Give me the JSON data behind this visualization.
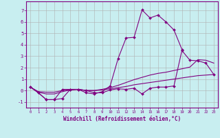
{
  "xlabel": "Windchill (Refroidissement éolien,°C)",
  "background_color": "#c8eef0",
  "line_color": "#800080",
  "grid_color": "#b0b0b0",
  "xlim": [
    -0.5,
    23.5
  ],
  "ylim": [
    -1.5,
    7.8
  ],
  "xticks": [
    0,
    1,
    2,
    3,
    4,
    5,
    6,
    7,
    8,
    9,
    10,
    11,
    12,
    13,
    14,
    15,
    16,
    17,
    18,
    19,
    20,
    21,
    22,
    23
  ],
  "yticks": [
    -1,
    0,
    1,
    2,
    3,
    4,
    5,
    6,
    7
  ],
  "curve1_x": [
    0,
    1,
    2,
    3,
    4,
    5,
    6,
    7,
    8,
    9,
    10,
    11,
    12,
    13,
    14,
    15,
    16,
    17,
    18,
    19
  ],
  "curve1_y": [
    0.3,
    -0.2,
    -0.8,
    -0.8,
    -0.7,
    0.1,
    0.1,
    -0.2,
    -0.3,
    -0.1,
    0.4,
    2.8,
    4.6,
    4.65,
    7.05,
    6.35,
    6.6,
    6.0,
    5.3,
    3.6
  ],
  "curve2_x": [
    0,
    1,
    2,
    3,
    4,
    5,
    6,
    7,
    8,
    9,
    10,
    11,
    12,
    13,
    14,
    15,
    16,
    17,
    18,
    19,
    20,
    21,
    22,
    23
  ],
  "curve2_y": [
    0.3,
    -0.2,
    -0.8,
    -0.8,
    0.1,
    0.1,
    0.1,
    0.0,
    -0.2,
    -0.2,
    0.05,
    0.15,
    0.1,
    0.2,
    -0.3,
    0.2,
    0.3,
    0.3,
    0.4,
    3.5,
    2.65,
    2.6,
    2.4,
    1.4
  ],
  "curve3_x": [
    0,
    1,
    2,
    3,
    4,
    5,
    6,
    7,
    8,
    9,
    10,
    11,
    12,
    13,
    14,
    15,
    16,
    17,
    18,
    19,
    20,
    21,
    22,
    23
  ],
  "curve3_y": [
    0.3,
    -0.15,
    -0.3,
    -0.3,
    -0.1,
    0.05,
    0.1,
    0.0,
    0.0,
    0.1,
    0.25,
    0.45,
    0.7,
    0.95,
    1.15,
    1.35,
    1.5,
    1.6,
    1.75,
    1.9,
    2.05,
    2.7,
    2.65,
    2.4
  ],
  "curve4_x": [
    0,
    1,
    2,
    3,
    4,
    5,
    6,
    7,
    8,
    9,
    10,
    11,
    12,
    13,
    14,
    15,
    16,
    17,
    18,
    19,
    20,
    21,
    22,
    23
  ],
  "curve4_y": [
    0.3,
    -0.1,
    -0.15,
    -0.15,
    0.0,
    0.05,
    0.1,
    0.0,
    0.0,
    0.05,
    0.15,
    0.25,
    0.35,
    0.5,
    0.6,
    0.7,
    0.8,
    0.9,
    1.0,
    1.1,
    1.2,
    1.3,
    1.35,
    1.4
  ]
}
